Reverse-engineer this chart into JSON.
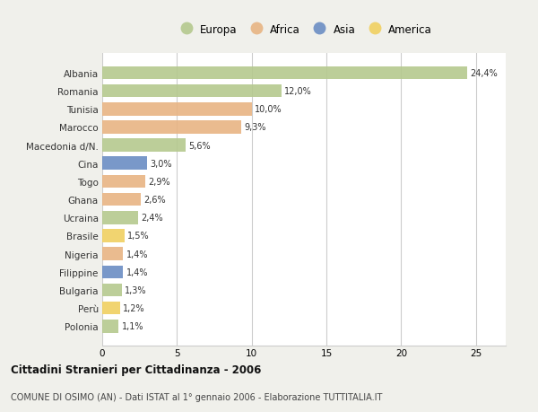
{
  "countries": [
    "Albania",
    "Romania",
    "Tunisia",
    "Marocco",
    "Macedonia d/N.",
    "Cina",
    "Togo",
    "Ghana",
    "Ucraina",
    "Brasile",
    "Nigeria",
    "Filippine",
    "Bulgaria",
    "Perù",
    "Polonia"
  ],
  "values": [
    24.4,
    12.0,
    10.0,
    9.3,
    5.6,
    3.0,
    2.9,
    2.6,
    2.4,
    1.5,
    1.4,
    1.4,
    1.3,
    1.2,
    1.1
  ],
  "labels": [
    "24,4%",
    "12,0%",
    "10,0%",
    "9,3%",
    "5,6%",
    "3,0%",
    "2,9%",
    "2,6%",
    "2,4%",
    "1,5%",
    "1,4%",
    "1,4%",
    "1,3%",
    "1,2%",
    "1,1%"
  ],
  "continent": [
    "Europa",
    "Europa",
    "Africa",
    "Africa",
    "Europa",
    "Asia",
    "Africa",
    "Africa",
    "Europa",
    "America",
    "Africa",
    "Asia",
    "Europa",
    "America",
    "Europa"
  ],
  "continent_colors": {
    "Europa": "#b5c98e",
    "Africa": "#e8b483",
    "Asia": "#6b8dc4",
    "America": "#f0d060"
  },
  "legend_order": [
    "Europa",
    "Africa",
    "Asia",
    "America"
  ],
  "title": "Cittadini Stranieri per Cittadinanza - 2006",
  "subtitle": "COMUNE DI OSIMO (AN) - Dati ISTAT al 1° gennaio 2006 - Elaborazione TUTTITALIA.IT",
  "xlim": [
    0,
    27
  ],
  "xticks": [
    0,
    5,
    10,
    15,
    20,
    25
  ],
  "background_color": "#f0f0eb",
  "bar_background": "#ffffff",
  "grid_color": "#cccccc"
}
